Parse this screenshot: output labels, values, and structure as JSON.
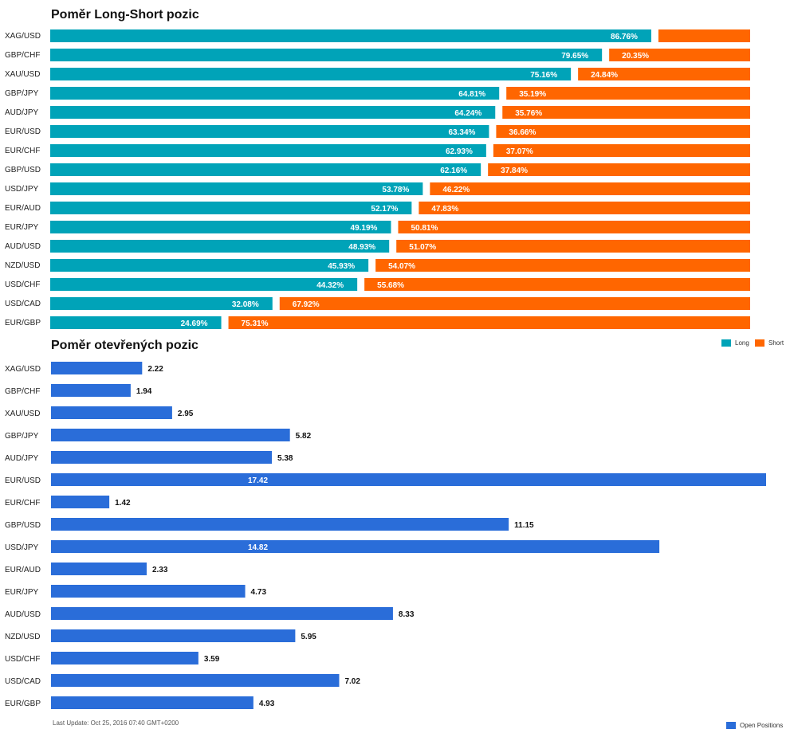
{
  "colors": {
    "long": "#00a3b8",
    "short": "#ff6600",
    "open": "#2a6dd9"
  },
  "chart_data": [
    {
      "type": "bar",
      "stacked": true,
      "orientation": "horizontal",
      "title": "Poměr Long-Short pozic",
      "categories": [
        "XAG/USD",
        "GBP/CHF",
        "XAU/USD",
        "GBP/JPY",
        "AUD/JPY",
        "EUR/USD",
        "EUR/CHF",
        "GBP/USD",
        "USD/JPY",
        "EUR/AUD",
        "EUR/JPY",
        "AUD/USD",
        "NZD/USD",
        "USD/CHF",
        "USD/CAD",
        "EUR/GBP"
      ],
      "series": [
        {
          "name": "Long",
          "values": [
            86.76,
            79.65,
            75.16,
            64.81,
            64.24,
            63.34,
            62.93,
            62.16,
            53.78,
            52.17,
            49.19,
            48.93,
            45.93,
            44.32,
            32.08,
            24.69
          ],
          "labels": [
            "86.76%",
            "79.65%",
            "75.16%",
            "64.81%",
            "64.24%",
            "63.34%",
            "62.93%",
            "62.16%",
            "53.78%",
            "52.17%",
            "49.19%",
            "48.93%",
            "45.93%",
            "44.32%",
            "32.08%",
            "24.69%"
          ]
        },
        {
          "name": "Short",
          "values": [
            13.24,
            20.35,
            24.84,
            35.19,
            35.76,
            36.66,
            37.07,
            37.84,
            46.22,
            47.83,
            50.81,
            51.07,
            54.07,
            55.68,
            67.92,
            75.31
          ],
          "labels": [
            "",
            "20.35%",
            "24.84%",
            "35.19%",
            "35.76%",
            "36.66%",
            "37.07%",
            "37.84%",
            "46.22%",
            "47.83%",
            "50.81%",
            "51.07%",
            "54.07%",
            "55.68%",
            "67.92%",
            "75.31%"
          ]
        }
      ],
      "xlim": [
        0,
        100
      ],
      "legend": "bottom-right"
    },
    {
      "type": "bar",
      "orientation": "horizontal",
      "title": "Poměr otevřených pozic",
      "categories": [
        "XAG/USD",
        "GBP/CHF",
        "XAU/USD",
        "GBP/JPY",
        "AUD/JPY",
        "EUR/USD",
        "EUR/CHF",
        "GBP/USD",
        "USD/JPY",
        "EUR/AUD",
        "EUR/JPY",
        "AUD/USD",
        "NZD/USD",
        "USD/CHF",
        "USD/CAD",
        "EUR/GBP"
      ],
      "series": [
        {
          "name": "Open Positions",
          "values": [
            2.22,
            1.94,
            2.95,
            5.82,
            5.38,
            17.42,
            1.42,
            11.15,
            14.82,
            2.33,
            4.73,
            8.33,
            5.95,
            3.59,
            7.02,
            4.93
          ],
          "labels": [
            "2.22",
            "1.94",
            "2.95",
            "5.82",
            "5.38",
            "17.42",
            "1.42",
            "11.15",
            "14.82",
            "2.33",
            "4.73",
            "8.33",
            "5.95",
            "3.59",
            "7.02",
            "4.93"
          ]
        }
      ],
      "xlim": [
        0,
        17.42
      ],
      "legend": "bottom-right"
    }
  ],
  "footer": {
    "last_update": "Last Update: Oct 25, 2016 07:40 GMT+0200"
  }
}
